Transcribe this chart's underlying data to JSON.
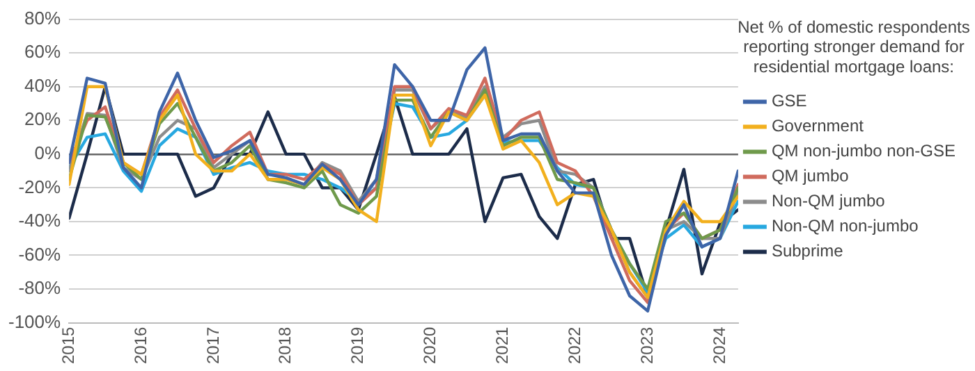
{
  "chart_data": {
    "type": "line",
    "legend_title": "Net % of domestic respondents reporting stronger demand for residential mortgage loans:",
    "x": [
      2015,
      2015.25,
      2015.5,
      2015.75,
      2016,
      2016.25,
      2016.5,
      2016.75,
      2017,
      2017.25,
      2017.5,
      2017.75,
      2018,
      2018.25,
      2018.5,
      2018.75,
      2019,
      2019.25,
      2019.5,
      2019.75,
      2020,
      2020.25,
      2020.5,
      2020.75,
      2021,
      2021.25,
      2021.5,
      2021.75,
      2022,
      2022.25,
      2022.5,
      2022.75,
      2023,
      2023.25,
      2023.5,
      2023.75,
      2024,
      2024.25
    ],
    "xlim": [
      2015,
      2024.25
    ],
    "xticks": [
      2015,
      2016,
      2017,
      2018,
      2019,
      2020,
      2021,
      2022,
      2023,
      2024
    ],
    "ylim": [
      -100,
      80
    ],
    "yticks": [
      {
        "value": -100,
        "label": "-100%"
      },
      {
        "value": -80,
        "label": "-80%"
      },
      {
        "value": -60,
        "label": "-60%"
      },
      {
        "value": -40,
        "label": "-40%"
      },
      {
        "value": -20,
        "label": "-20%"
      },
      {
        "value": 0,
        "label": "0%"
      },
      {
        "value": 20,
        "label": "20%"
      },
      {
        "value": 40,
        "label": "40%"
      },
      {
        "value": 60,
        "label": "60%"
      },
      {
        "value": 80,
        "label": "80%"
      }
    ],
    "grid": "y",
    "legend": "right",
    "marker": "none",
    "line_style": "solid",
    "series": [
      {
        "name": "GSE",
        "color": "#3e65a8",
        "values": [
          -5,
          45,
          42,
          -8,
          -20,
          25,
          48,
          20,
          -2,
          2,
          8,
          -12,
          -14,
          -18,
          -6,
          -15,
          -30,
          -15,
          53,
          40,
          20,
          20,
          50,
          63,
          8,
          12,
          12,
          -10,
          -23,
          -23,
          -60,
          -84,
          -93,
          -48,
          -30,
          -55,
          -50,
          -10
        ]
      },
      {
        "name": "Government",
        "color": "#f2b01e",
        "values": [
          -18,
          40,
          40,
          -5,
          -12,
          20,
          35,
          0,
          -10,
          -10,
          0,
          -15,
          -15,
          -18,
          -8,
          -15,
          -33,
          -40,
          35,
          35,
          5,
          25,
          20,
          35,
          3,
          8,
          -5,
          -30,
          -23,
          -25,
          -45,
          -70,
          -85,
          -45,
          -28,
          -40,
          -40,
          -25
        ]
      },
      {
        "name": "QM non-jumbo non-GSE",
        "color": "#6f9a4b",
        "values": [
          -15,
          23,
          22,
          -5,
          -15,
          18,
          30,
          10,
          -10,
          -5,
          5,
          -15,
          -17,
          -20,
          -10,
          -30,
          -35,
          -25,
          32,
          32,
          10,
          25,
          20,
          38,
          5,
          10,
          10,
          -15,
          -17,
          -20,
          -45,
          -65,
          -80,
          -40,
          -35,
          -50,
          -45,
          -20
        ]
      },
      {
        "name": "QM jumbo",
        "color": "#d06b5d",
        "values": [
          -5,
          20,
          28,
          -5,
          -12,
          22,
          38,
          15,
          -5,
          5,
          13,
          -12,
          -12,
          -15,
          -6,
          -12,
          -30,
          -20,
          40,
          40,
          15,
          27,
          23,
          45,
          8,
          20,
          25,
          -5,
          -10,
          -25,
          -50,
          -75,
          -88,
          -45,
          -35,
          -50,
          -45,
          -18
        ]
      },
      {
        "name": "Non-QM jumbo",
        "color": "#8c8c8c",
        "values": [
          -10,
          24,
          23,
          -8,
          -15,
          10,
          20,
          15,
          -8,
          0,
          8,
          -15,
          -15,
          -18,
          -5,
          -10,
          -28,
          -15,
          38,
          38,
          15,
          25,
          22,
          40,
          10,
          18,
          20,
          -10,
          -12,
          -20,
          -45,
          -70,
          -85,
          -45,
          -40,
          -50,
          -50,
          -22
        ]
      },
      {
        "name": "Non-QM non-jumbo",
        "color": "#27a8e0",
        "values": [
          -8,
          10,
          12,
          -10,
          -22,
          5,
          15,
          10,
          -12,
          -8,
          -5,
          -10,
          -12,
          -12,
          -15,
          -20,
          -28,
          -20,
          30,
          28,
          10,
          12,
          20,
          35,
          7,
          8,
          8,
          -8,
          -18,
          -20,
          -45,
          -65,
          -82,
          -50,
          -42,
          -55,
          -50,
          -28
        ]
      },
      {
        "name": "Subprime",
        "color": "#1c2c4a",
        "values": [
          -38,
          0,
          40,
          0,
          0,
          0,
          0,
          -25,
          -20,
          0,
          0,
          25,
          0,
          0,
          -20,
          -20,
          -33,
          0,
          34,
          0,
          0,
          0,
          15,
          -40,
          -14,
          -12,
          -37,
          -50,
          -18,
          -15,
          -50,
          -50,
          -85,
          -45,
          -9,
          -71,
          -41,
          -33
        ]
      }
    ]
  }
}
